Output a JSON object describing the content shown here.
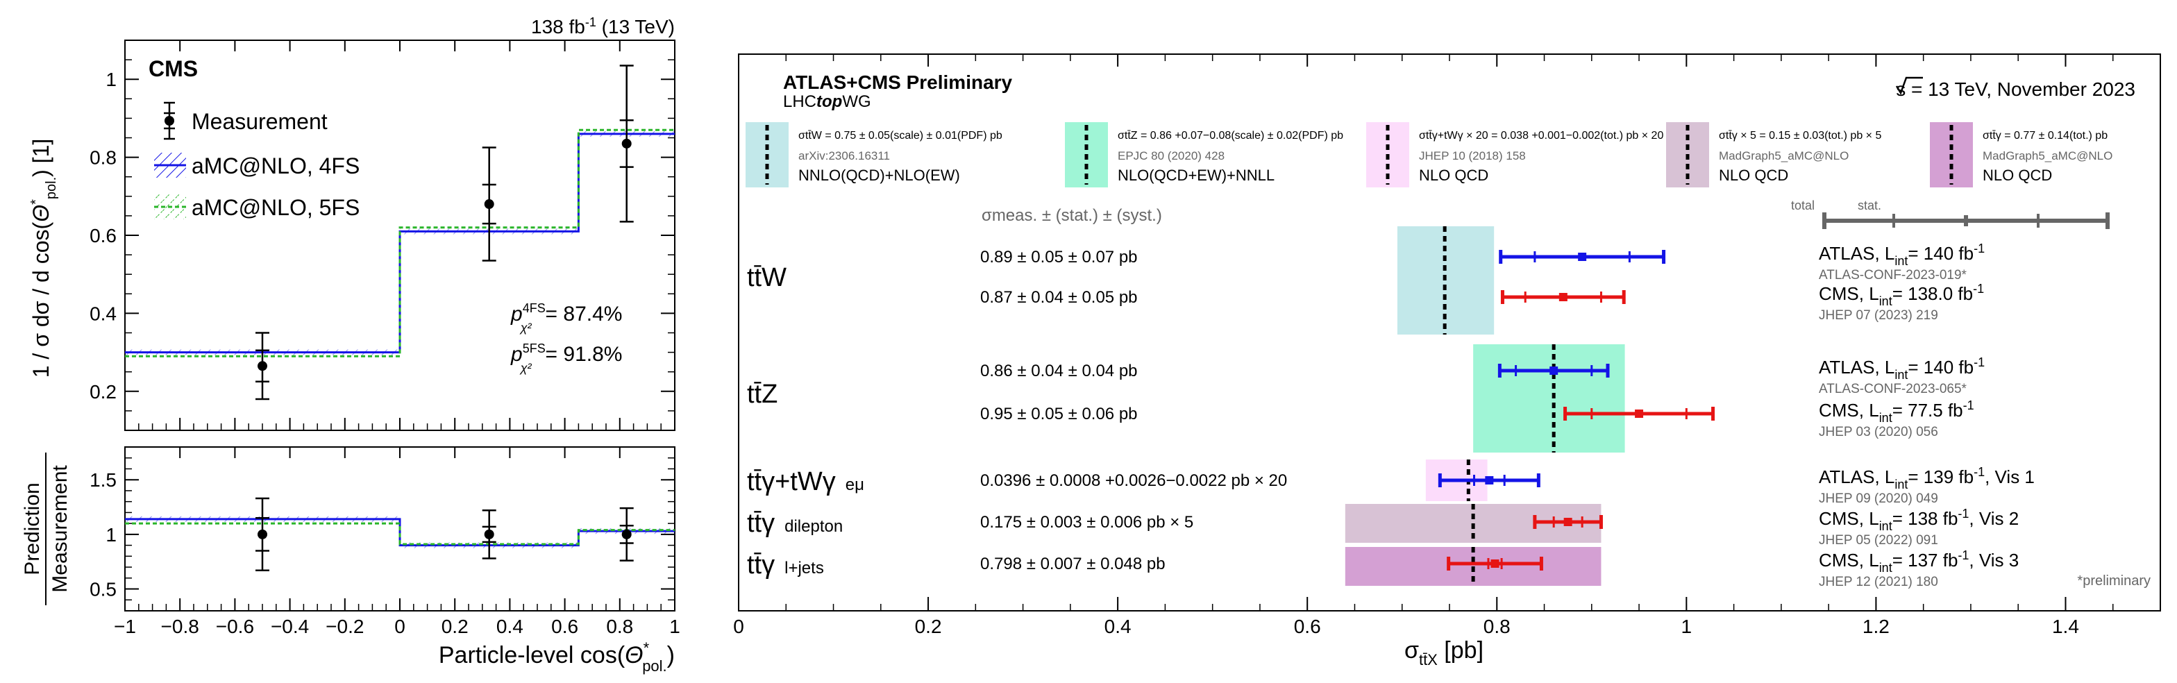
{
  "chart_data": [
    {
      "type": "step",
      "lumi_label": "138 fb",
      "lumi_sup": "-1",
      "lumi_suffix": " (13 TeV)",
      "experiment": "CMS",
      "xlabel": "Particle-level  cos(",
      "xlabel_symbol": "Θ",
      "xlabel_sup": "*",
      "xlabel_sub": "pol.",
      "xlabel_end": ")",
      "ylabel_top": "1 / σ   dσ / d cos(",
      "ylabel_top_symbol": "Θ",
      "ylabel_top_sup": "*",
      "ylabel_top_sub": "pol.",
      "ylabel_top_end": ")   [1]",
      "ylabel_ratio_num": "Prediction",
      "ylabel_ratio_den": "Measurement",
      "xlim": [
        -1,
        1
      ],
      "ylim_top": [
        0.1,
        1.1
      ],
      "ylim_ratio": [
        0.3,
        1.8
      ],
      "x_ticks": [
        "−1",
        "−0.8",
        "−0.6",
        "−0.4",
        "−0.2",
        "0",
        "0.2",
        "0.4",
        "0.6",
        "0.8",
        "1"
      ],
      "y_ticks_top": [
        "0.2",
        "0.4",
        "0.6",
        "0.8",
        "1"
      ],
      "y_ticks_ratio": [
        "0.5",
        "1",
        "1.5"
      ],
      "bin_edges": [
        -1,
        0,
        0.65,
        1
      ],
      "legend": [
        "Measurement",
        "aMC@NLO, 4FS",
        "aMC@NLO, 5FS"
      ],
      "measurement": {
        "x": [
          -0.5,
          0.325,
          0.825
        ],
        "y": [
          0.265,
          0.68,
          0.835
        ],
        "stat": [
          0.04,
          0.05,
          0.06
        ],
        "total": [
          0.085,
          0.145,
          0.2
        ]
      },
      "prediction_4fs": [
        0.3,
        0.61,
        0.86
      ],
      "prediction_5fs": [
        0.29,
        0.62,
        0.87
      ],
      "ratio": {
        "y": [
          1.0,
          1.0,
          1.0
        ],
        "stat": [
          0.15,
          0.07,
          0.08
        ],
        "total": [
          0.33,
          0.22,
          0.24
        ]
      },
      "ratio_4fs": [
        1.14,
        0.9,
        1.03
      ],
      "ratio_5fs": [
        1.1,
        0.91,
        1.04
      ],
      "pvalue_label": "p",
      "pvalue_4fs_sup": "4FS",
      "pvalue_5fs_sup": "5FS",
      "pvalue_sub": "χ²",
      "pvalue_4fs": "= 87.4%",
      "pvalue_5fs": "= 91.8%"
    },
    {
      "type": "summary",
      "title": "ATLAS+CMS Preliminary",
      "subtitle_pre": "LHC",
      "subtitle_bold": "top",
      "subtitle_post": "WG",
      "energy": "s = 13 TeV, November 2023",
      "xlabel": "σ",
      "xlabel_sub": "tt̄X",
      "xlabel_unit": " [pb]",
      "xlim": [
        0,
        1.5
      ],
      "x_ticks": [
        0,
        0.2,
        0.4,
        0.6,
        0.8,
        1,
        1.2,
        1.4
      ],
      "column_header": "σmeas. ± (stat.) ± (syst.)",
      "key_total": "total",
      "key_stat": "stat.",
      "preliminary_note": "*preliminary",
      "theory_legend": [
        {
          "formula": "σtt̄W = 0.75 ± 0.05(scale) ± 0.01(PDF) pb",
          "ref": "arXiv:2306.16311",
          "order": "NNLO(QCD)+NLO(EW)",
          "color": "#c2e8ea"
        },
        {
          "formula": "σtt̄Z = 0.86 +0.07−0.08(scale) ± 0.02(PDF) pb",
          "ref": "EPJC 80 (2020) 428",
          "order": "NLO(QCD+EW)+NNLL",
          "color": "#9ff5d6"
        },
        {
          "formula": "σtt̄γ+tWγ × 20 = 0.038 +0.001−0.002(tot.) pb × 20",
          "ref": "JHEP 10 (2018) 158",
          "order": "NLO QCD",
          "color": "#fcdcfb"
        },
        {
          "formula": "σtt̄γ × 5 = 0.15 ± 0.03(tot.) pb × 5",
          "ref": "MadGraph5_aMC@NLO",
          "order": "NLO QCD",
          "color": "#d8c2d5"
        },
        {
          "formula": "σtt̄γ = 0.77 ± 0.14(tot.) pb",
          "ref": "MadGraph5_aMC@NLO",
          "order": "NLO QCD",
          "color": "#d4a0d3"
        }
      ],
      "theory_bands": [
        {
          "process": "tt̄W",
          "center": 0.745,
          "low": 0.695,
          "high": 0.797,
          "color": "#c2e8ea"
        },
        {
          "process": "tt̄Z",
          "center": 0.86,
          "low": 0.775,
          "high": 0.935,
          "color": "#9ff5d6"
        },
        {
          "process": "tt̄γ+tWγ",
          "center": 0.77,
          "low": 0.725,
          "high": 0.79,
          "color": "#fcdcfb"
        },
        {
          "process": "tt̄γ dilepton",
          "center": 0.775,
          "low": 0.64,
          "high": 0.91,
          "color": "#d8c2d5"
        },
        {
          "process": "tt̄γ l+jets",
          "center": 0.775,
          "low": 0.64,
          "high": 0.91,
          "color": "#d4a0d3"
        }
      ],
      "groups": [
        {
          "label": "tt̄W",
          "sub": ""
        },
        {
          "label": "tt̄Z",
          "sub": ""
        },
        {
          "label": "tt̄γ+tWγ",
          "sub": "eμ"
        },
        {
          "label": "tt̄γ",
          "sub": "dilepton"
        },
        {
          "label": "tt̄γ",
          "sub": "l+jets"
        }
      ],
      "measurements": [
        {
          "group": 0,
          "text": "0.89 ± 0.05 ± 0.07 pb",
          "value": 0.89,
          "stat": 0.05,
          "total": 0.086,
          "color": "#1414e6",
          "exp": "ATLAS, L",
          "exp_sub": "int",
          "exp_post": "= 140 fb",
          "exp_sup": "-1",
          "ref": "ATLAS-CONF-2023-019*"
        },
        {
          "group": 0,
          "text": "0.87 ± 0.04 ± 0.05 pb",
          "value": 0.87,
          "stat": 0.04,
          "total": 0.064,
          "color": "#e61414",
          "exp": "CMS, L",
          "exp_sub": "int",
          "exp_post": "= 138.0 fb",
          "exp_sup": "-1",
          "ref": "JHEP 07 (2023) 219"
        },
        {
          "group": 1,
          "text": "0.86 ± 0.04 ± 0.04 pb",
          "value": 0.86,
          "stat": 0.04,
          "total": 0.057,
          "color": "#1414e6",
          "exp": "ATLAS, L",
          "exp_sub": "int",
          "exp_post": "= 140 fb",
          "exp_sup": "-1",
          "ref": "ATLAS-CONF-2023-065*"
        },
        {
          "group": 1,
          "text": "0.95 ± 0.05 ± 0.06 pb",
          "value": 0.95,
          "stat": 0.05,
          "total": 0.078,
          "color": "#e61414",
          "exp": "CMS, L",
          "exp_sub": "int",
          "exp_post": "= 77.5 fb",
          "exp_sup": "-1",
          "ref": "JHEP 03 (2020) 056"
        },
        {
          "group": 2,
          "text": "0.0396 ± 0.0008  +0.0026−0.0022 pb × 20",
          "value": 0.792,
          "stat": 0.016,
          "total": 0.052,
          "color": "#1414e6",
          "exp": "ATLAS, L",
          "exp_sub": "int",
          "exp_post": "= 139 fb",
          "exp_sup": "-1",
          "exp_tail": ", Vis 1",
          "ref": "JHEP 09 (2020) 049"
        },
        {
          "group": 3,
          "text": "0.175 ± 0.003 ± 0.006 pb × 5",
          "value": 0.875,
          "stat": 0.015,
          "total": 0.035,
          "color": "#e61414",
          "exp": "CMS, L",
          "exp_sub": "int",
          "exp_post": "= 138 fb",
          "exp_sup": "-1",
          "exp_tail": ", Vis 2",
          "ref": "JHEP 05 (2022) 091"
        },
        {
          "group": 4,
          "text": "0.798 ± 0.007 ± 0.048 pb",
          "value": 0.798,
          "stat": 0.007,
          "total": 0.049,
          "color": "#e61414",
          "exp": "CMS, L",
          "exp_sub": "int",
          "exp_post": "= 137 fb",
          "exp_sup": "-1",
          "exp_tail": ", Vis 3",
          "ref": "JHEP 12 (2021) 180"
        }
      ]
    }
  ]
}
